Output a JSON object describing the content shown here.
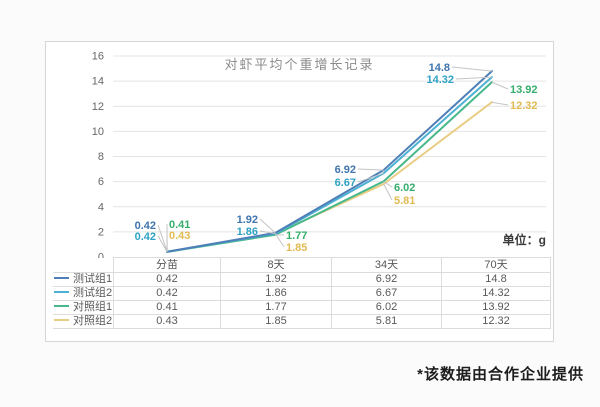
{
  "page": {
    "footnote": "*该数据由合作企业提供"
  },
  "chart": {
    "title": "对虾平均个重增长记录",
    "unit_label": "单位：g"
  },
  "chart_data": {
    "type": "line",
    "title": "对虾平均个重增长记录",
    "unit": "g",
    "categories": [
      "分苗",
      "8天",
      "34天",
      "70天"
    ],
    "series": [
      {
        "name": "测试组1",
        "color": "#4e7fb7",
        "label_color": "#3f74ae",
        "values": [
          0.42,
          1.92,
          6.92,
          14.8
        ]
      },
      {
        "name": "测试组2",
        "color": "#4cb1d2",
        "label_color": "#2fa2c6",
        "values": [
          0.42,
          1.86,
          6.67,
          14.32
        ]
      },
      {
        "name": "对照组1",
        "color": "#47b88b",
        "label_color": "#35ad6b",
        "values": [
          0.41,
          1.77,
          6.02,
          13.92
        ]
      },
      {
        "name": "对照组2",
        "color": "#e9cd84",
        "label_color": "#e2ba52",
        "values": [
          0.43,
          1.85,
          5.81,
          12.32
        ]
      }
    ],
    "ylim": [
      0,
      16
    ],
    "ytick_step": 2,
    "grid": true,
    "grid_color": "#e4e4e4",
    "axis_text_color": "#666666",
    "legend_position": "table-left"
  }
}
